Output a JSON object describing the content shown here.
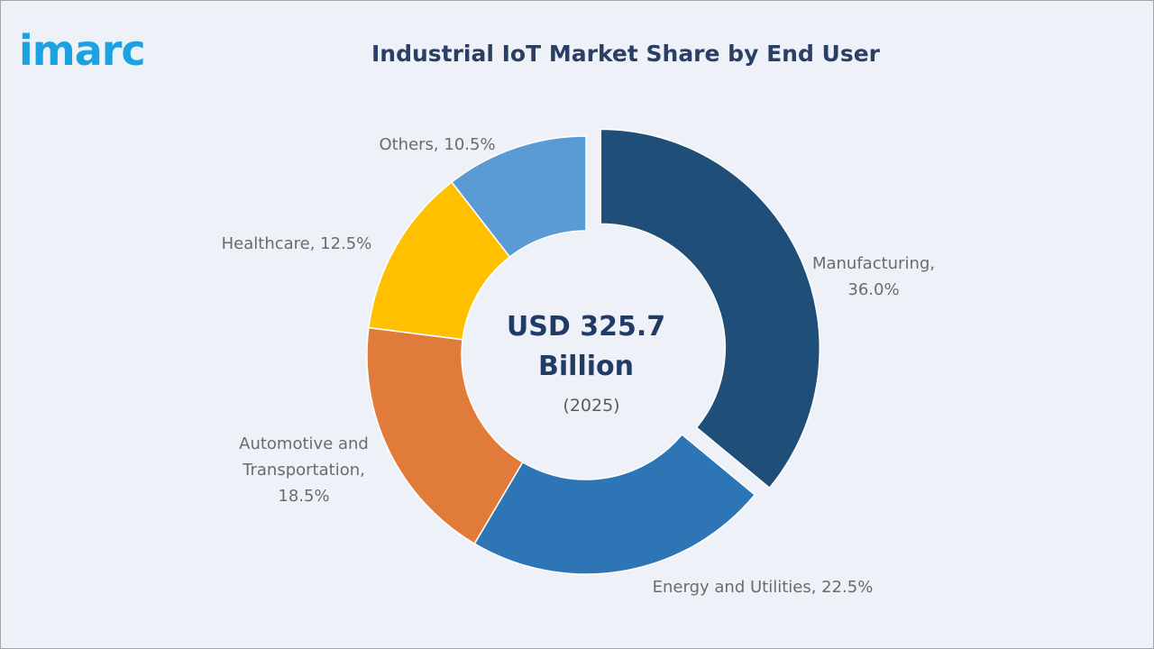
{
  "logo": {
    "text": "imarc"
  },
  "title": "Industrial IoT Market Share by End User",
  "center": {
    "line1": "USD 325.7",
    "line2": "Billion",
    "line3": "(2025)"
  },
  "chart_data": {
    "type": "pie",
    "variant": "donut",
    "title": "Industrial IoT Market Share by End User",
    "unit": "%",
    "categories": [
      "Manufacturing",
      "Energy and Utilities",
      "Automotive and Transportation",
      "Healthcare",
      "Others"
    ],
    "values": [
      36.0,
      22.5,
      18.5,
      12.5,
      10.5
    ],
    "colors": [
      "#1f4e79",
      "#2e75b6",
      "#e07b39",
      "#ffc000",
      "#5b9bd5"
    ],
    "exploded": "Manufacturing",
    "labels": [
      {
        "lines": [
          "Manufacturing,",
          "36.0%"
        ]
      },
      {
        "lines": [
          "Energy and Utilities, 22.5%"
        ]
      },
      {
        "lines": [
          "Automotive and",
          "Transportation,",
          "18.5%"
        ]
      },
      {
        "lines": [
          "Healthcare, 12.5%"
        ]
      },
      {
        "lines": [
          "Others, 10.5%"
        ]
      }
    ]
  }
}
